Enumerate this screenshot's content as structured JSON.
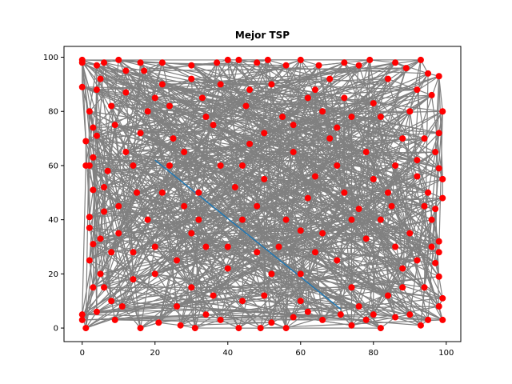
{
  "chart_data": {
    "type": "scatter",
    "title": "Mejor TSP",
    "xlabel": "",
    "ylabel": "",
    "xlim": [
      -5,
      104
    ],
    "ylim": [
      -5,
      104
    ],
    "x_ticks": [
      0,
      20,
      40,
      60,
      80,
      100
    ],
    "y_ticks": [
      0,
      20,
      40,
      60,
      80,
      100
    ],
    "grid": false,
    "colors": {
      "points": "#ff0000",
      "tour": "#808080",
      "highlight": "#1f77b4"
    },
    "points": [
      [
        0,
        99
      ],
      [
        0,
        98
      ],
      [
        0,
        89
      ],
      [
        1,
        69
      ],
      [
        1,
        60
      ],
      [
        2,
        60
      ],
      [
        3,
        51
      ],
      [
        2,
        41
      ],
      [
        2,
        37
      ],
      [
        3,
        31
      ],
      [
        2,
        25
      ],
      [
        3,
        15
      ],
      [
        0,
        3
      ],
      [
        0,
        5
      ],
      [
        1,
        0
      ],
      [
        4,
        6
      ],
      [
        3,
        74
      ],
      [
        4,
        71
      ],
      [
        4,
        88
      ],
      [
        5,
        92
      ],
      [
        4,
        97
      ],
      [
        6,
        98
      ],
      [
        10,
        99
      ],
      [
        16,
        98
      ],
      [
        17,
        95
      ],
      [
        22,
        98
      ],
      [
        30,
        97
      ],
      [
        37,
        98
      ],
      [
        40,
        99
      ],
      [
        43,
        99
      ],
      [
        48,
        98
      ],
      [
        51,
        99
      ],
      [
        56,
        97
      ],
      [
        60,
        99
      ],
      [
        65,
        97
      ],
      [
        72,
        98
      ],
      [
        76,
        97
      ],
      [
        79,
        99
      ],
      [
        86,
        98
      ],
      [
        89,
        96
      ],
      [
        93,
        99
      ],
      [
        95,
        94
      ],
      [
        98,
        93
      ],
      [
        99,
        80
      ],
      [
        98,
        72
      ],
      [
        97,
        65
      ],
      [
        98,
        59
      ],
      [
        99,
        55
      ],
      [
        99,
        48
      ],
      [
        97,
        44
      ],
      [
        96,
        40
      ],
      [
        98,
        32
      ],
      [
        98,
        28
      ],
      [
        97,
        24
      ],
      [
        98,
        19
      ],
      [
        99,
        11
      ],
      [
        98,
        8
      ],
      [
        99,
        3
      ],
      [
        95,
        3
      ],
      [
        93,
        1
      ],
      [
        90,
        5
      ],
      [
        86,
        4
      ],
      [
        82,
        0
      ],
      [
        78,
        3
      ],
      [
        74,
        1
      ],
      [
        71,
        5
      ],
      [
        66,
        3
      ],
      [
        62,
        6
      ],
      [
        56,
        0
      ],
      [
        52,
        2
      ],
      [
        49,
        0
      ],
      [
        43,
        0
      ],
      [
        38,
        3
      ],
      [
        31,
        0
      ],
      [
        27,
        1
      ],
      [
        21,
        2
      ],
      [
        16,
        0
      ],
      [
        11,
        8
      ],
      [
        8,
        10
      ],
      [
        5,
        20
      ],
      [
        8,
        28
      ],
      [
        6,
        43
      ],
      [
        7,
        58
      ],
      [
        9,
        75
      ],
      [
        12,
        87
      ],
      [
        18,
        80
      ],
      [
        25,
        70
      ],
      [
        33,
        85
      ],
      [
        45,
        82
      ],
      [
        55,
        78
      ],
      [
        64,
        88
      ],
      [
        70,
        74
      ],
      [
        80,
        83
      ],
      [
        88,
        70
      ],
      [
        92,
        56
      ],
      [
        85,
        45
      ],
      [
        78,
        33
      ],
      [
        88,
        22
      ],
      [
        74,
        15
      ],
      [
        60,
        20
      ],
      [
        50,
        12
      ],
      [
        40,
        22
      ],
      [
        30,
        15
      ],
      [
        20,
        30
      ],
      [
        15,
        50
      ],
      [
        28,
        45
      ],
      [
        38,
        60
      ],
      [
        50,
        55
      ],
      [
        62,
        48
      ],
      [
        70,
        60
      ],
      [
        80,
        55
      ],
      [
        66,
        35
      ],
      [
        54,
        30
      ],
      [
        44,
        40
      ],
      [
        34,
        30
      ],
      [
        24,
        60
      ],
      [
        12,
        65
      ],
      [
        90,
        35
      ],
      [
        84,
        12
      ],
      [
        58,
        65
      ],
      [
        46,
        68
      ],
      [
        36,
        75
      ],
      [
        22,
        90
      ],
      [
        68,
        92
      ],
      [
        92,
        88
      ],
      [
        94,
        70
      ],
      [
        10,
        35
      ],
      [
        14,
        18
      ],
      [
        26,
        8
      ],
      [
        44,
        10
      ],
      [
        60,
        10
      ],
      [
        76,
        8
      ],
      [
        88,
        15
      ],
      [
        95,
        50
      ],
      [
        92,
        62
      ],
      [
        82,
        78
      ],
      [
        72,
        85
      ],
      [
        52,
        90
      ],
      [
        30,
        92
      ],
      [
        8,
        82
      ],
      [
        18,
        40
      ],
      [
        32,
        50
      ],
      [
        48,
        45
      ],
      [
        64,
        56
      ],
      [
        76,
        44
      ],
      [
        86,
        30
      ],
      [
        70,
        25
      ],
      [
        56,
        40
      ],
      [
        42,
        52
      ],
      [
        28,
        65
      ],
      [
        16,
        72
      ],
      [
        6,
        52
      ],
      [
        3,
        63
      ],
      [
        5,
        33
      ],
      [
        9,
        3
      ],
      [
        34,
        5
      ],
      [
        58,
        4
      ],
      [
        80,
        5
      ],
      [
        94,
        15
      ],
      [
        96,
        30
      ],
      [
        94,
        45
      ],
      [
        90,
        80
      ],
      [
        96,
        86
      ],
      [
        84,
        92
      ],
      [
        66,
        80
      ],
      [
        50,
        72
      ],
      [
        38,
        90
      ],
      [
        20,
        85
      ],
      [
        12,
        95
      ],
      [
        2,
        80
      ],
      [
        10,
        45
      ],
      [
        20,
        20
      ],
      [
        30,
        35
      ],
      [
        40,
        30
      ],
      [
        52,
        20
      ],
      [
        64,
        28
      ],
      [
        74,
        40
      ],
      [
        84,
        50
      ],
      [
        78,
        65
      ],
      [
        68,
        70
      ],
      [
        58,
        75
      ],
      [
        44,
        60
      ],
      [
        32,
        40
      ],
      [
        22,
        50
      ],
      [
        14,
        28
      ],
      [
        26,
        25
      ],
      [
        36,
        12
      ],
      [
        48,
        28
      ],
      [
        60,
        36
      ],
      [
        72,
        50
      ],
      [
        82,
        40
      ],
      [
        92,
        25
      ],
      [
        86,
        60
      ],
      [
        74,
        78
      ],
      [
        62,
        85
      ],
      [
        46,
        88
      ],
      [
        34,
        78
      ],
      [
        24,
        82
      ],
      [
        14,
        60
      ],
      [
        6,
        15
      ]
    ],
    "highlight_line": {
      "x": [
        20,
        71
      ],
      "y": [
        62,
        7
      ]
    }
  }
}
